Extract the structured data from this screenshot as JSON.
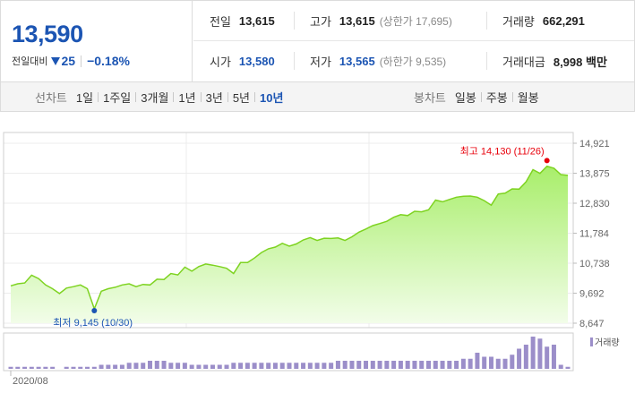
{
  "quote": {
    "price": "13,590",
    "change_label": "전일대비",
    "change_abs": "25",
    "change_pct": "−0.18%",
    "change_direction": "down",
    "down_color": "#1c55b3",
    "up_color": "#e8000b"
  },
  "stats": [
    [
      {
        "label": "전일",
        "value": "13,615",
        "blue": false,
        "sub": ""
      },
      {
        "label": "고가",
        "value": "13,615",
        "blue": false,
        "sub": "(상한가 17,695)"
      },
      {
        "label": "거래량",
        "value": "662,291",
        "blue": false,
        "sub": ""
      }
    ],
    [
      {
        "label": "시가",
        "value": "13,580",
        "blue": true,
        "sub": ""
      },
      {
        "label": "저가",
        "value": "13,565",
        "blue": true,
        "sub": "(하한가 9,535)"
      },
      {
        "label": "거래대금",
        "value": "8,998 백만",
        "blue": false,
        "sub": ""
      }
    ]
  ],
  "tabs": {
    "line_title": "선차트",
    "line_periods": [
      "1일",
      "1주일",
      "3개월",
      "1년",
      "3년",
      "5년",
      "10년"
    ],
    "line_active_index": 6,
    "candle_title": "봉차트",
    "candle_periods": [
      "일봉",
      "주봉",
      "월봉"
    ]
  },
  "chart_data": {
    "type": "area",
    "title": "",
    "xlabel": "",
    "ylabel": "",
    "y_ticks": [
      "14,921",
      "13,875",
      "12,830",
      "11,784",
      "10,738",
      "9,692",
      "8,647"
    ],
    "ylim": [
      8647,
      14921
    ],
    "x_tick_labels": [
      "2020/08"
    ],
    "line_color": "#7ed321",
    "fill_top_color": "#a8ee6a",
    "fill_bottom_color": "#f2fde9",
    "volume_color": "#9b8ec9",
    "volume_legend": "거래량",
    "price_series": [
      9950,
      10020,
      10050,
      10320,
      10200,
      9980,
      9850,
      9680,
      9870,
      9920,
      9980,
      9850,
      9145,
      9760,
      9850,
      9900,
      9980,
      10020,
      9920,
      10000,
      9980,
      10180,
      10170,
      10380,
      10330,
      10600,
      10460,
      10620,
      10710,
      10670,
      10620,
      10560,
      10380,
      10760,
      10760,
      10920,
      11110,
      11240,
      11300,
      11430,
      11330,
      11410,
      11550,
      11630,
      11530,
      11610,
      11600,
      11620,
      11530,
      11660,
      11820,
      11930,
      12050,
      12120,
      12200,
      12340,
      12430,
      12400,
      12550,
      12530,
      12600,
      12940,
      12880,
      12960,
      13040,
      13070,
      13080,
      13040,
      12920,
      12760,
      13150,
      13180,
      13330,
      13320,
      13580,
      14000,
      13870,
      14120,
      14050,
      13830,
      13800
    ],
    "volume_series": [
      1,
      1,
      1,
      1,
      1,
      1,
      1,
      0,
      1,
      1,
      1,
      1,
      1,
      2,
      2,
      2,
      2,
      3,
      3,
      3,
      4,
      4,
      4,
      3,
      3,
      3,
      2,
      2,
      2,
      2,
      2,
      2,
      3,
      3,
      3,
      3,
      3,
      3,
      3,
      3,
      3,
      3,
      3,
      3,
      3,
      3,
      3,
      4,
      4,
      4,
      4,
      4,
      4,
      4,
      4,
      4,
      4,
      4,
      4,
      4,
      4,
      4,
      4,
      4,
      4,
      5,
      5,
      8,
      6,
      6,
      5,
      5,
      7,
      10,
      12,
      16,
      15,
      11,
      12,
      2,
      1
    ],
    "max_label": "최고 14,130 (11/26)",
    "max_value": 14130,
    "max_color": "#e8000b",
    "min_label": "최저 9,145 (10/30)",
    "min_value": 9145,
    "min_color": "#1c55b3"
  }
}
